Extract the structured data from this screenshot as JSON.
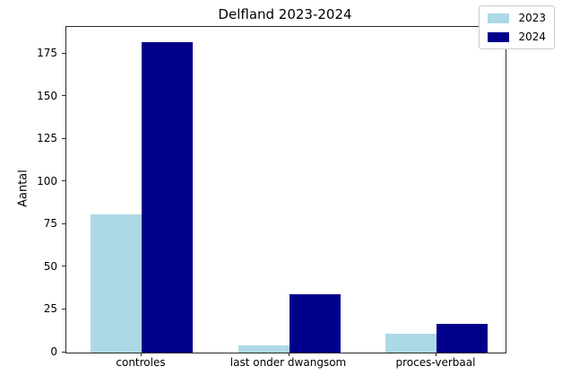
{
  "chart_data": {
    "type": "bar",
    "title": "Delfland 2023-2024",
    "xlabel": "",
    "ylabel": "Aantal",
    "categories": [
      "controles",
      "last onder dwangsom",
      "proces-verbaal"
    ],
    "series": [
      {
        "name": "2023",
        "color": "#add8e6",
        "values": [
          81,
          4,
          11
        ]
      },
      {
        "name": "2024",
        "color": "#00008b",
        "values": [
          182,
          34,
          17
        ]
      }
    ],
    "yticks": [
      0,
      25,
      50,
      75,
      100,
      125,
      150,
      175
    ],
    "ylim": [
      0,
      191
    ],
    "legend_position": "upper right",
    "legend_entries": [
      "2023",
      "2024"
    ],
    "grid": false,
    "colors": {
      "series_2023": "#add8e6",
      "series_2024": "#00008b",
      "spine": "#2b2b2b",
      "text": "#000000",
      "background": "#ffffff",
      "legend_border": "#cccccc"
    }
  }
}
